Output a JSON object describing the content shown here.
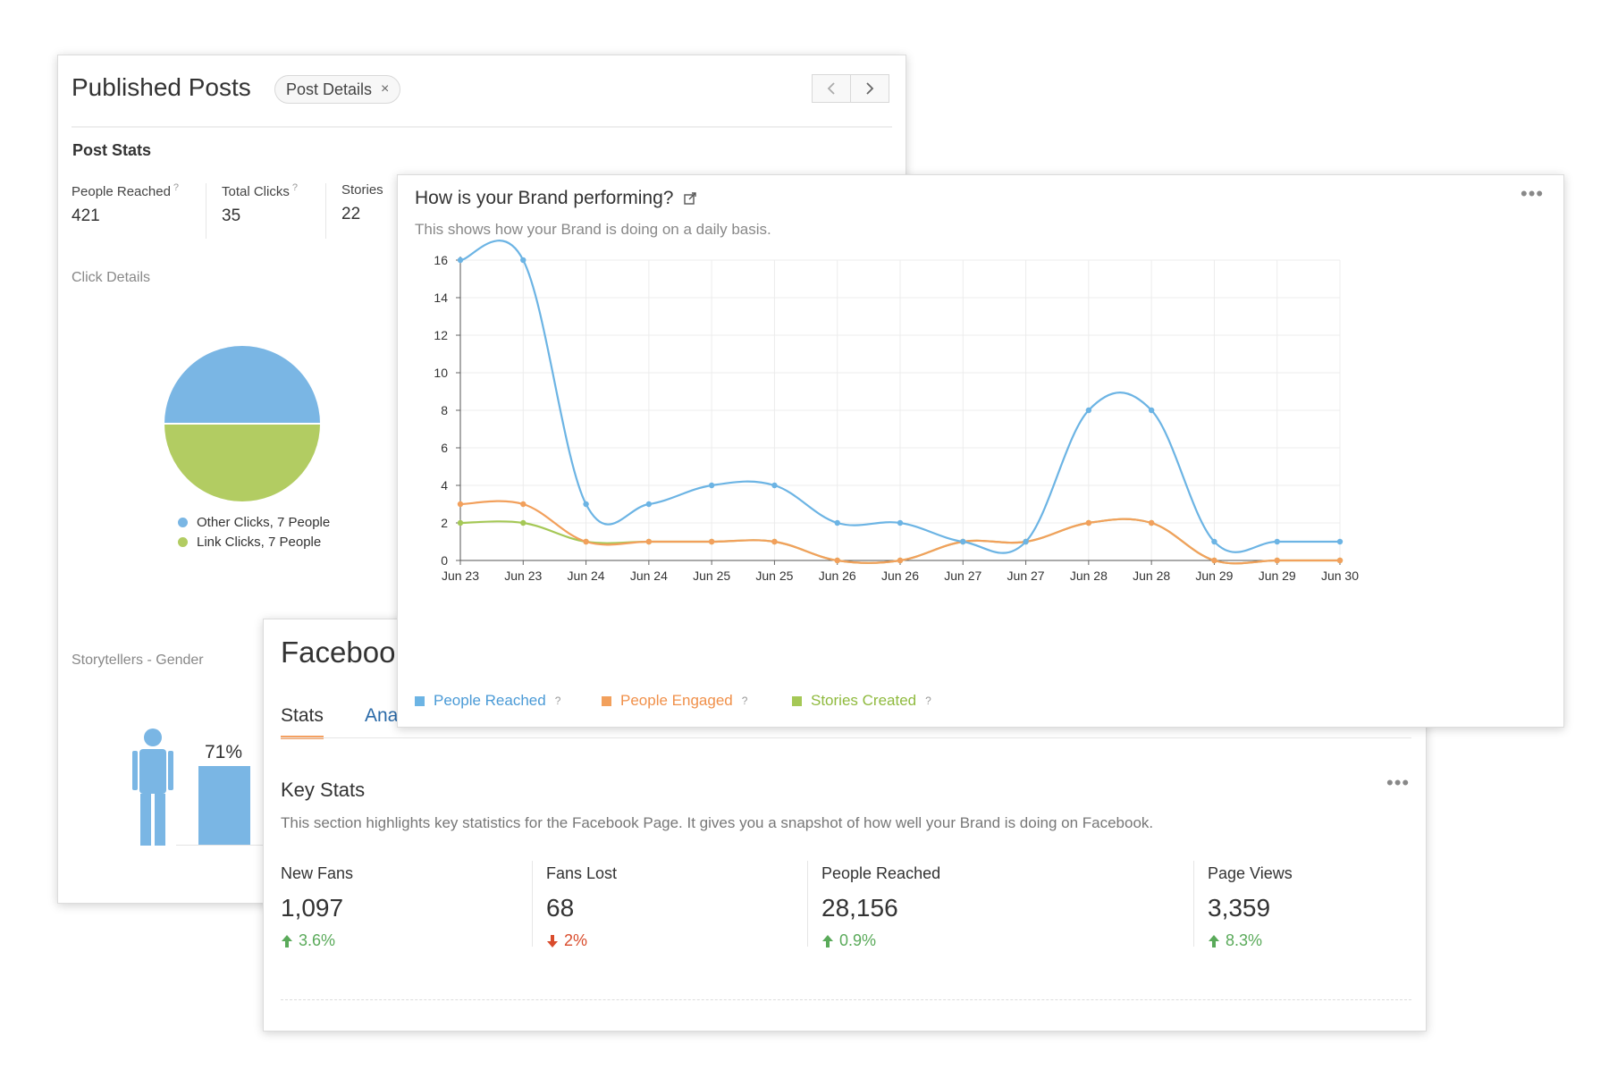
{
  "posts": {
    "title": "Published Posts",
    "pill_label": "Post Details",
    "pill_close": "×",
    "prev": "‹",
    "next": "›",
    "section_title": "Post Stats",
    "stats": [
      {
        "label": "People Reached",
        "value": "421"
      },
      {
        "label": "Total Clicks",
        "value": "35"
      },
      {
        "label": "Stories",
        "value": "22"
      }
    ],
    "help_mark": "?",
    "click_details": "Click Details",
    "pie": {
      "slices": [
        {
          "label": "Other Clicks, 7 People",
          "value": 7,
          "color": "#7ab6e4"
        },
        {
          "label": "Link Clicks, 7 People",
          "value": 7,
          "color": "#b2cc62"
        }
      ]
    },
    "gender_title": "Storytellers - Gender",
    "gender_pct": "71%",
    "gender_fraction": 0.71
  },
  "facebook": {
    "title": "Facebook",
    "tabs": [
      "Stats",
      "Analytics"
    ],
    "tab_ana_visible": "Ana",
    "key_stats_title": "Key Stats",
    "key_stats_desc": "This section highlights key statistics for the Facebook Page. It gives you a snapshot of how well your Brand is doing on Facebook.",
    "more": "•••",
    "stats": [
      {
        "label": "New Fans",
        "value": "1,097",
        "change": "3.6%",
        "direction": "up"
      },
      {
        "label": "Fans Lost",
        "value": "68",
        "change": "2%",
        "direction": "down"
      },
      {
        "label": "People Reached",
        "value": "28,156",
        "change": "0.9%",
        "direction": "up"
      },
      {
        "label": "Page Views",
        "value": "3,359",
        "change": "8.3%",
        "direction": "up"
      }
    ]
  },
  "brand": {
    "title": "How is your Brand performing?",
    "description": "This shows how your Brand is doing on a daily basis.",
    "more": "•••",
    "help_mark": "?"
  },
  "chart_data": {
    "type": "line",
    "x": [
      "Jun 23",
      "Jun 23",
      "Jun 24",
      "Jun 24",
      "Jun 25",
      "Jun 25",
      "Jun 26",
      "Jun 26",
      "Jun 27",
      "Jun 27",
      "Jun 28",
      "Jun 28",
      "Jun 29",
      "Jun 29",
      "Jun 30"
    ],
    "ylim": [
      0,
      16
    ],
    "yticks": [
      0,
      2,
      4,
      6,
      8,
      10,
      12,
      14,
      16
    ],
    "grid": true,
    "legend": "bottom-left",
    "series": [
      {
        "name": "People Reached",
        "color": "#6cb4e4",
        "values": [
          16,
          16,
          3,
          3,
          4,
          4,
          2,
          2,
          1,
          1,
          8,
          8,
          1,
          1,
          1
        ]
      },
      {
        "name": "People Engaged",
        "color": "#f2a05c",
        "values": [
          3,
          3,
          1,
          1,
          1,
          1,
          0,
          0,
          1,
          1,
          2,
          2,
          0,
          0,
          0
        ]
      },
      {
        "name": "Stories Created",
        "color": "#a5c856",
        "values": [
          2,
          2,
          1,
          1,
          1,
          1,
          0,
          0,
          1,
          1,
          2,
          2,
          0,
          0,
          0
        ]
      }
    ]
  }
}
